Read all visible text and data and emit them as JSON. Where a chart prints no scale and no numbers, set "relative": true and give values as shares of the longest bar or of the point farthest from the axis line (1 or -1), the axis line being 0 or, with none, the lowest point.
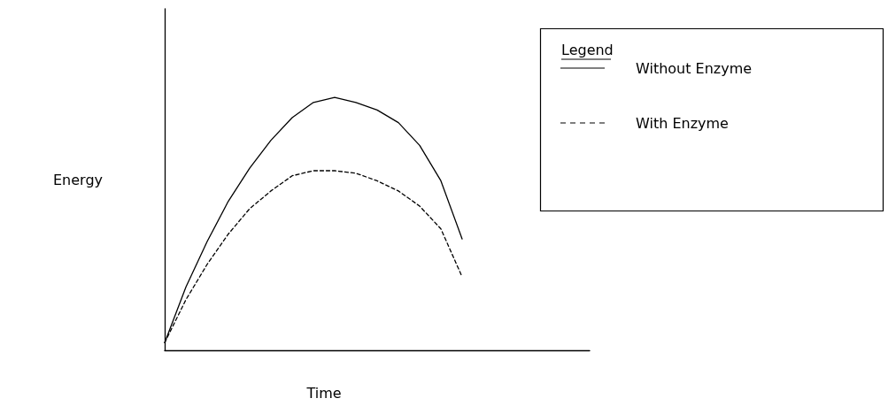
{
  "chart_data": {
    "type": "line",
    "relative": true,
    "xlabel": "Time",
    "ylabel": "Energy",
    "legend_title": "Legend",
    "legend": "top right",
    "grid": false,
    "marker": "none",
    "categories": [
      null,
      null,
      null,
      null,
      null,
      null,
      null,
      null,
      null,
      null,
      null,
      null,
      null,
      null,
      null,
      null,
      null,
      null,
      null,
      null,
      null
    ],
    "series": [
      {
        "name": "Without Enzyme",
        "color": "#000000",
        "line_style": "solid",
        "values": [
          0.03,
          0.25,
          0.43,
          0.59,
          0.72,
          0.83,
          0.92,
          0.98,
          1.0,
          0.98,
          0.95,
          0.9,
          0.81,
          0.67,
          0.44,
          null,
          null,
          null,
          null,
          null,
          null
        ]
      },
      {
        "name": "With Enzyme",
        "color": "#000000",
        "line_style": "dashed",
        "values": [
          0.03,
          0.2,
          0.34,
          0.46,
          0.56,
          0.63,
          0.69,
          0.71,
          0.71,
          0.7,
          0.67,
          0.63,
          0.57,
          0.48,
          0.29,
          null,
          null,
          null,
          null,
          null,
          null
        ]
      }
    ]
  }
}
